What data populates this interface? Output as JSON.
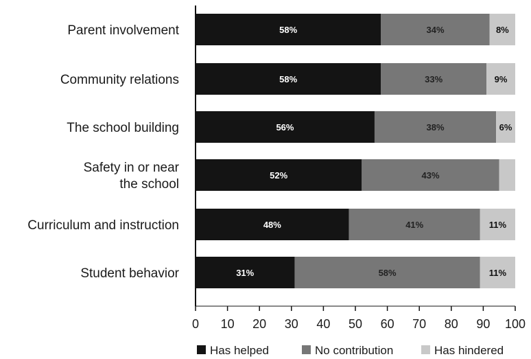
{
  "chart_data": {
    "type": "bar",
    "orientation": "horizontal",
    "stacked": true,
    "categories": [
      [
        "Parent involvement"
      ],
      [
        "Community relations"
      ],
      [
        "The school building"
      ],
      [
        "Safety in or near",
        "the school"
      ],
      [
        "Curriculum and instruction"
      ],
      [
        "Student behavior"
      ]
    ],
    "series": [
      {
        "name": "Has helped",
        "color": "#141414",
        "label_color": "#ffffff",
        "values": [
          58,
          58,
          56,
          52,
          48,
          31
        ]
      },
      {
        "name": "No contribution",
        "color": "#777777",
        "label_color": "#222222",
        "values": [
          34,
          33,
          38,
          43,
          41,
          58
        ]
      },
      {
        "name": "Has hindered",
        "color": "#c8c8c8",
        "label_color": "#111111",
        "values": [
          8,
          9,
          6,
          5,
          11,
          11
        ]
      }
    ],
    "data_labels": [
      [
        "58%",
        "34%",
        "8%"
      ],
      [
        "58%",
        "33%",
        "9%"
      ],
      [
        "56%",
        "38%",
        "6%"
      ],
      [
        "52%",
        "43%",
        ""
      ],
      [
        "48%",
        "41%",
        "11%"
      ],
      [
        "31%",
        "58%",
        "11%"
      ]
    ],
    "xlim": [
      0,
      100
    ],
    "xticks": [
      0,
      10,
      20,
      30,
      40,
      50,
      60,
      70,
      80,
      90,
      100
    ],
    "grid": false,
    "legend_position": "bottom"
  }
}
